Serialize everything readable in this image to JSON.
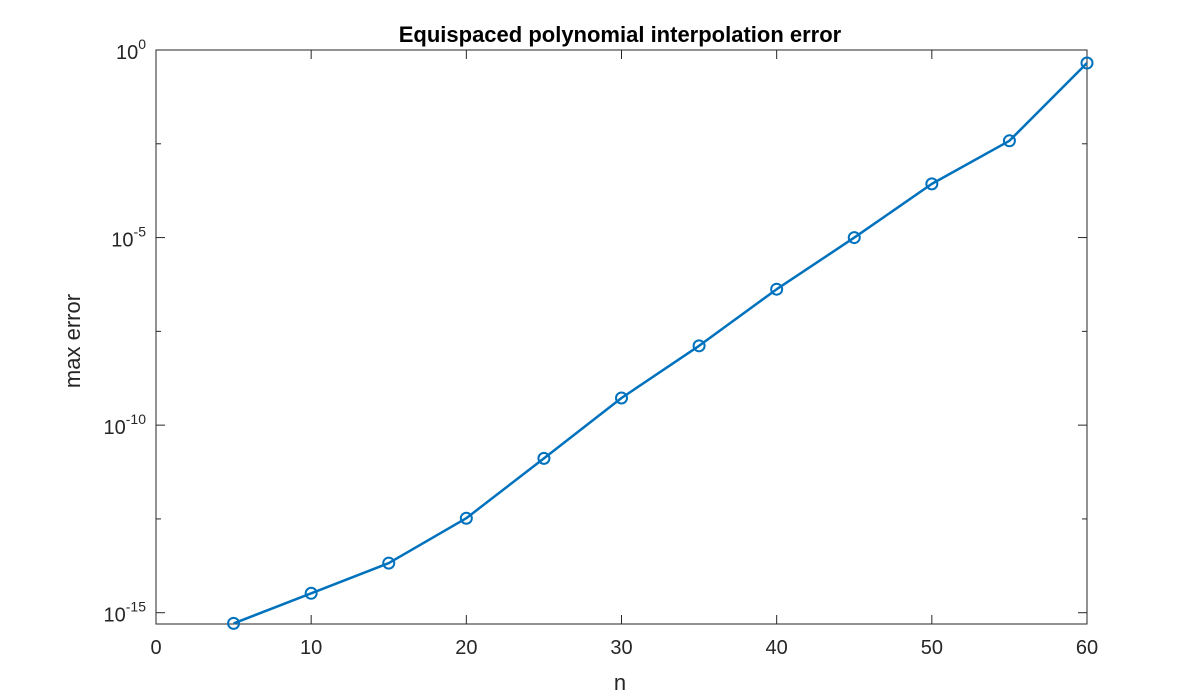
{
  "chart_data": {
    "type": "line",
    "title": "Equispaced polynomial interpolation error",
    "xlabel": "n",
    "ylabel": "max error",
    "xlim": [
      0,
      60
    ],
    "ylim": [
      5e-16,
      1
    ],
    "yscale": "log",
    "grid": false,
    "x_ticks": [
      {
        "value": 0,
        "label": "0"
      },
      {
        "value": 10,
        "label": "10"
      },
      {
        "value": 20,
        "label": "20"
      },
      {
        "value": 30,
        "label": "30"
      },
      {
        "value": 40,
        "label": "40"
      },
      {
        "value": 50,
        "label": "50"
      },
      {
        "value": 60,
        "label": "60"
      }
    ],
    "y_ticks": [
      {
        "value": 1e-15,
        "base": "10",
        "exponent": "-15"
      },
      {
        "value": 1e-10,
        "base": "10",
        "exponent": "-10"
      },
      {
        "value": 1e-05,
        "base": "10",
        "exponent": "-5"
      },
      {
        "value": 1,
        "base": "10",
        "exponent": "0"
      }
    ],
    "series": [
      {
        "color": "#0072BD",
        "marker": "circle",
        "x": [
          5,
          10,
          15,
          20,
          25,
          30,
          35,
          40,
          45,
          50,
          55,
          60
        ],
        "y": [
          5.2e-16,
          3.3e-15,
          2.1e-14,
          3.3e-13,
          1.3e-11,
          5.3e-10,
          1.3e-08,
          4.2e-07,
          1e-05,
          0.00027,
          0.0038,
          0.45
        ]
      }
    ]
  }
}
